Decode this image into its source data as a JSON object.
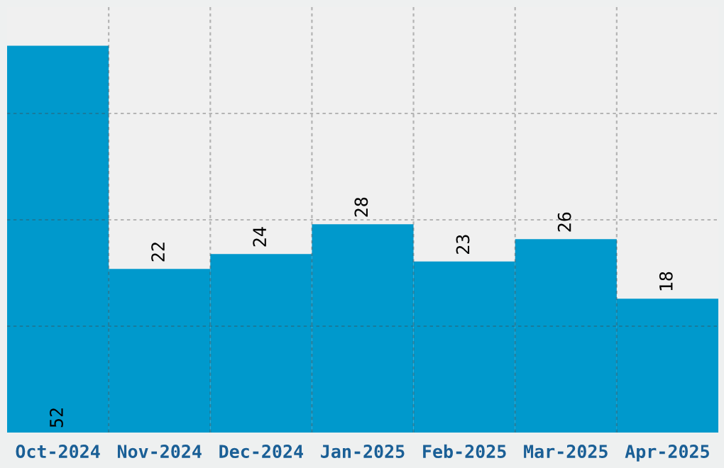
{
  "chart_data": {
    "type": "bar",
    "categories": [
      "Oct-2024",
      "Nov-2024",
      "Dec-2024",
      "Jan-2025",
      "Feb-2025",
      "Mar-2025",
      "Apr-2025"
    ],
    "values": [
      52,
      22,
      24,
      28,
      23,
      26,
      18
    ],
    "color": "#0099cc",
    "ylim": [
      0,
      57.2
    ],
    "yticks": [
      {
        "value": 14.3,
        "label": null
      },
      {
        "value": 28.6,
        "label": null
      },
      {
        "value": 42.9,
        "label": null
      }
    ],
    "tick_labels": "x",
    "data_labels": true,
    "grid": true
  }
}
